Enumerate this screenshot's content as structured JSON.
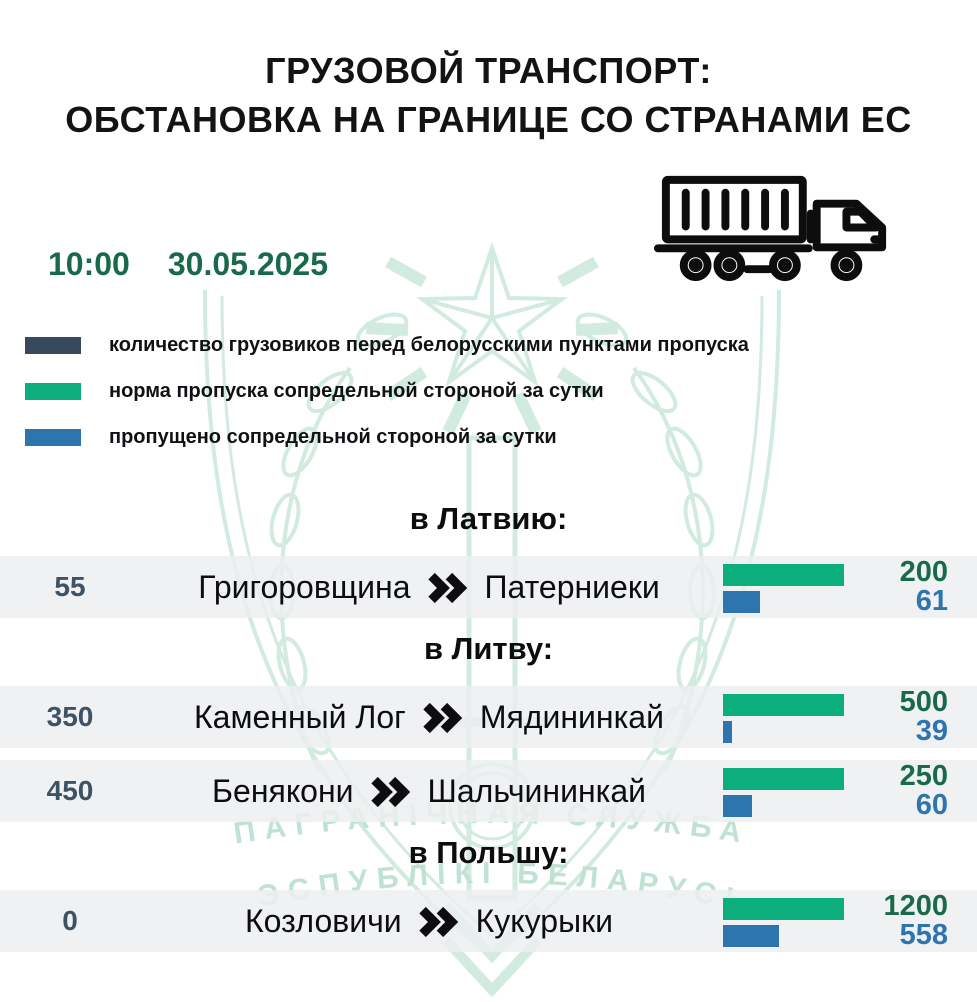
{
  "title": {
    "line1": "ГРУЗОВОЙ ТРАНСПОРТ:",
    "line2": "ОБСТАНОВКА НА ГРАНИЦЕ СО СТРАНАМИ ЕС"
  },
  "datetime": {
    "time": "10:00",
    "date": "30.05.2025"
  },
  "icons": {
    "truck": "semi-truck-outline",
    "route_separator": "double-chevron-right"
  },
  "legend": {
    "items": [
      {
        "color": "#37495c",
        "label": "количество грузовиков перед белорусскими пунктами пропуска"
      },
      {
        "color": "#0bae7c",
        "label": "норма пропуска сопредельной стороной за сутки"
      },
      {
        "color": "#2e74ae",
        "label": "пропущено сопредельной стороной за сутки"
      }
    ]
  },
  "chart_data": {
    "type": "bar",
    "title": "ГРУЗОВОЙ ТРАНСПОРТ: ОБСТАНОВКА НА ГРАНИЦЕ СО СТРАНАМИ ЕС",
    "time": "10:00",
    "date": "30.05.2025",
    "bar_colors": {
      "norm": "#0bae7c",
      "passed": "#2e74ae",
      "queue_text": "#3e5266"
    },
    "note": "green bar = daily norm (full width per row), blue bar = passed, scaled to norm",
    "groups": [
      {
        "destination": "в Латвию:",
        "rows": [
          {
            "queue": 55,
            "from": "Григоровщина",
            "to": "Патерниеки",
            "norm": 200,
            "passed": 61
          }
        ]
      },
      {
        "destination": "в Литву:",
        "rows": [
          {
            "queue": 350,
            "from": "Каменный Лог",
            "to": "Мядининкай",
            "norm": 500,
            "passed": 39
          },
          {
            "queue": 450,
            "from": "Бенякони",
            "to": "Шальчининкай",
            "norm": 250,
            "passed": 60
          }
        ]
      },
      {
        "destination": "в Польшу:",
        "rows": [
          {
            "queue": 0,
            "from": "Козловичи",
            "to": "Кукурыки",
            "norm": 1200,
            "passed": 558
          }
        ]
      }
    ]
  },
  "watermark": {
    "line1": "ПАГРАНІЧНАЯ СЛУЖБА",
    "line2": "РЭСПУБЛІКІ БЕЛАРУСЬ"
  },
  "colors": {
    "title": "#131316",
    "navy": "#37495c",
    "green": "#0bae7c",
    "blue": "#2e74ae",
    "green_text": "#19694b",
    "navy_text": "#3e5266",
    "blue_text": "#2e74ae",
    "row_bg": "rgba(236,238,240,0.85)",
    "wm_stroke": "#d2ebdf",
    "wm_text": "#bfe2d2"
  }
}
